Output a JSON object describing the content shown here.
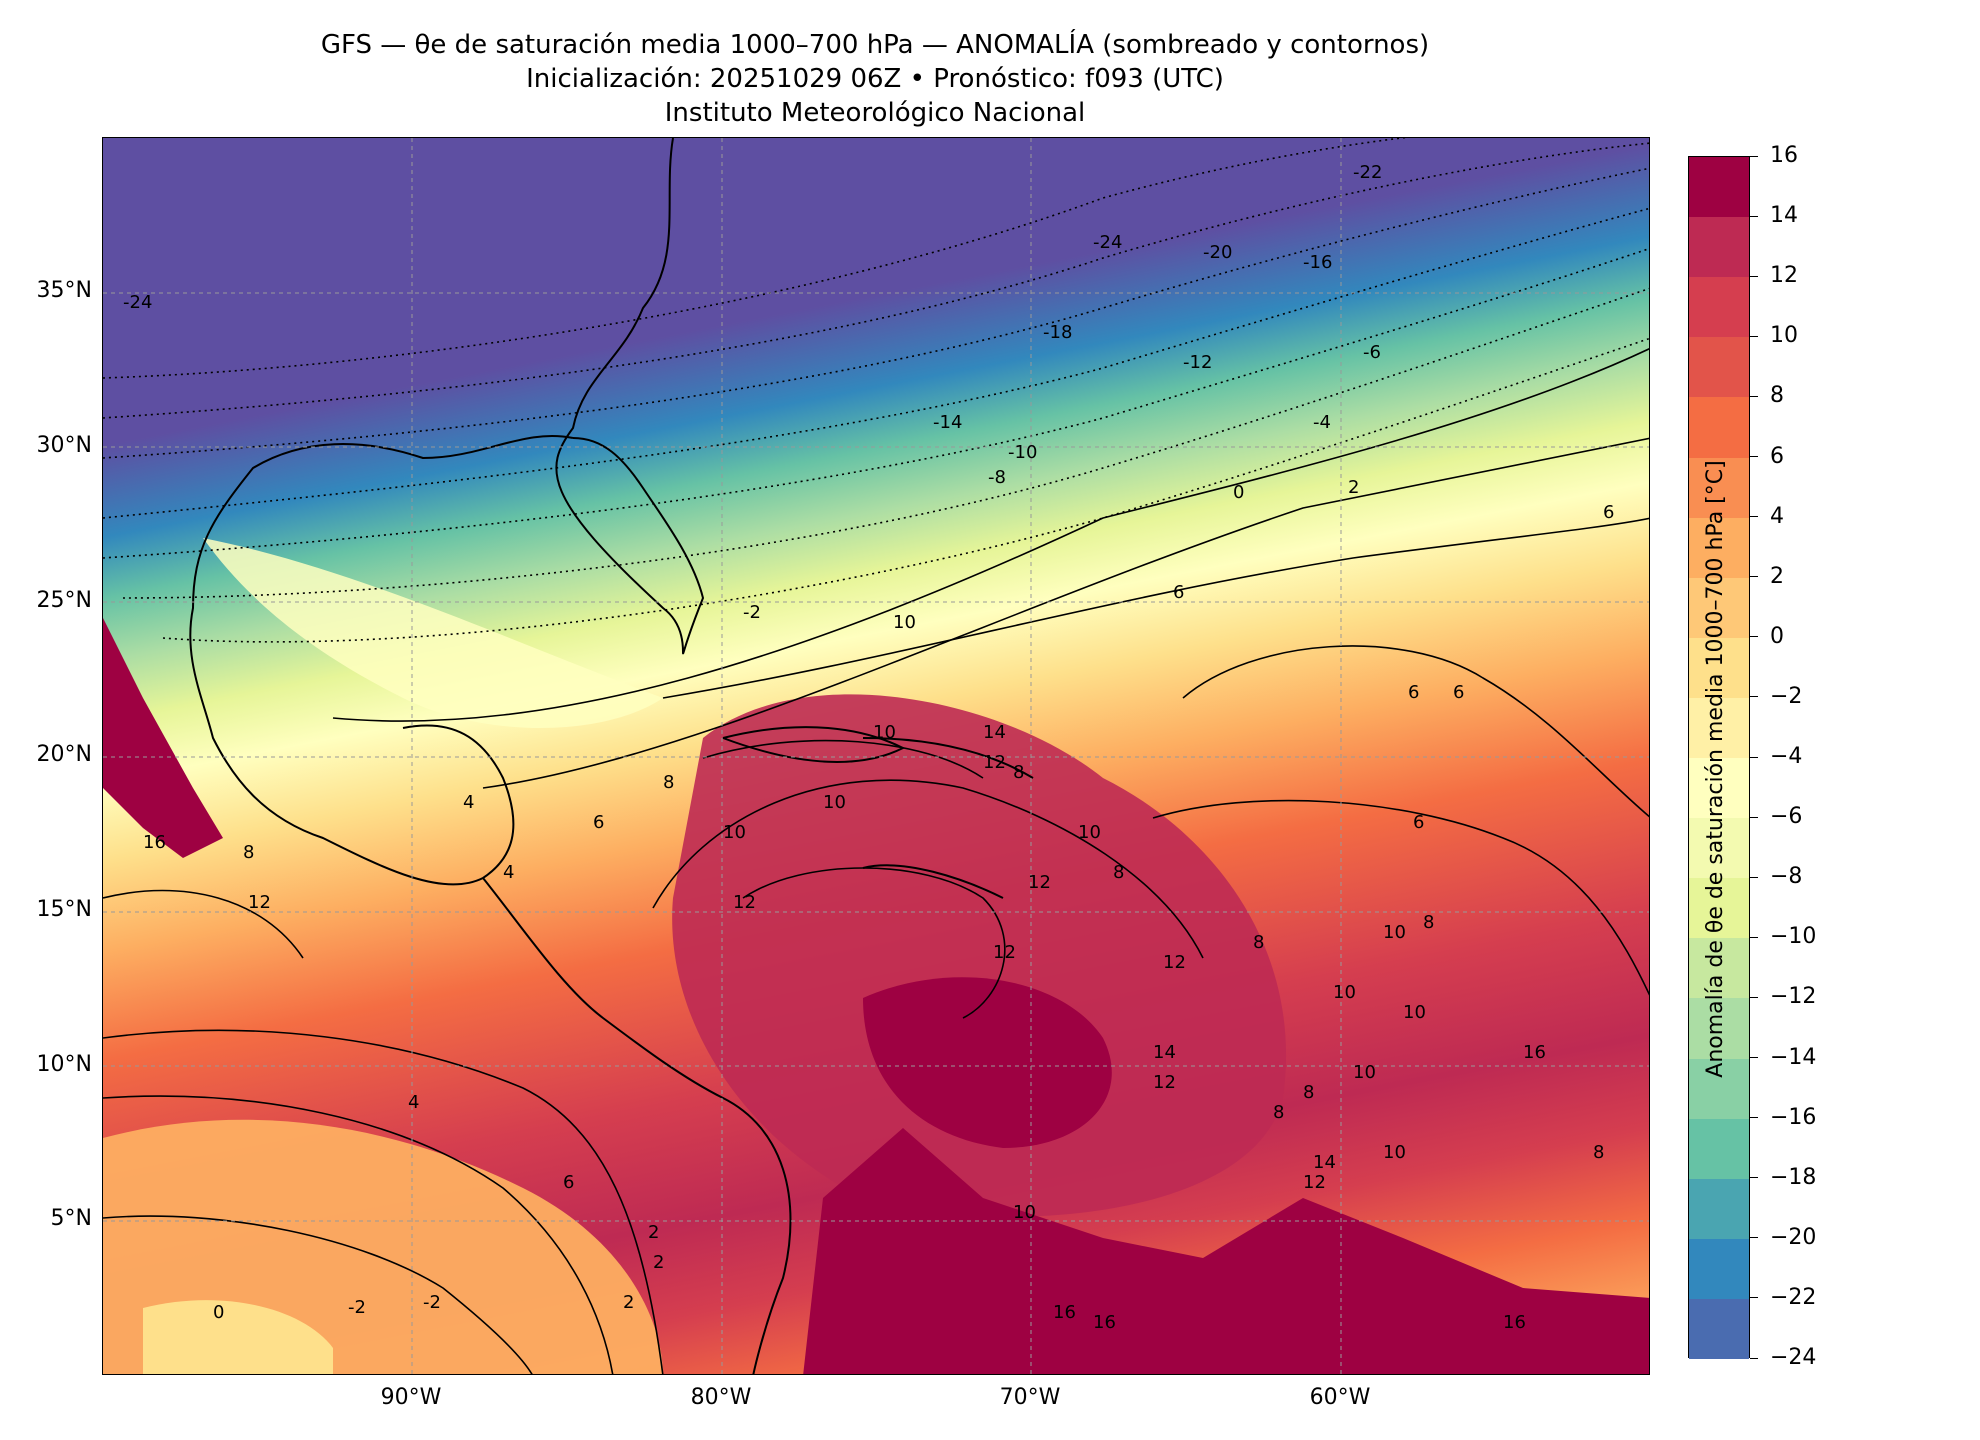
{
  "header": {
    "line1": "GFS — θe de saturación media 1000–700 hPa — ANOMALÍA (sombreado y contornos)",
    "line2": "Inicialización: 20251029 06Z   •   Pronóstico: f093 (UTC)",
    "line3": "Instituto Meteorológico Nacional"
  },
  "axes": {
    "lat_ticks": [
      "35°N",
      "30°N",
      "25°N",
      "20°N",
      "15°N",
      "10°N",
      "5°N"
    ],
    "lon_ticks": [
      "90°W",
      "80°W",
      "70°W",
      "60°W"
    ],
    "lat_range": [
      0,
      40
    ],
    "lon_range": [
      -100,
      -50
    ]
  },
  "colorbar": {
    "label": "Anomalía de θe de saturación media 1000–700 hPa [°C]",
    "ticks": [
      "16",
      "14",
      "12",
      "10",
      "8",
      "6",
      "4",
      "2",
      "0",
      "−2",
      "−4",
      "−6",
      "−8",
      "−10",
      "−12",
      "−14",
      "−16",
      "−18",
      "−20",
      "−22",
      "−24"
    ],
    "colors": [
      "#9e0142",
      "#be2a53",
      "#d53e4f",
      "#e2544a",
      "#f46d43",
      "#f98e52",
      "#fdae61",
      "#fec877",
      "#fee08b",
      "#fff0a6",
      "#ffffbf",
      "#f3fab0",
      "#e6f598",
      "#c7e89f",
      "#abdda4",
      "#89d0a5",
      "#66c2a5",
      "#4aa5b1",
      "#3288bd",
      "#4a6cb0",
      "#5e4fa2"
    ]
  },
  "contour_labels": [
    "-24",
    "-22",
    "-24",
    "-20",
    "-16",
    "-18",
    "-12",
    "-6",
    "-14",
    "-10",
    "-4",
    "-8",
    "0",
    "2",
    "6",
    "-2",
    "6",
    "10",
    "10",
    "14",
    "12",
    "8",
    "10",
    "10",
    "8",
    "12",
    "12",
    "10",
    "14",
    "12",
    "10",
    "14",
    "16",
    "16",
    "16",
    "4",
    "2",
    "0",
    "-2",
    "2",
    "2",
    "4",
    "6",
    "8",
    "10",
    "12",
    "12",
    "12",
    "16",
    "8",
    "10",
    "6",
    "6",
    "6",
    "8",
    "8",
    "8",
    "10",
    "10",
    "8",
    "16",
    "8",
    "10",
    "12",
    "4",
    "-2",
    "6"
  ]
}
